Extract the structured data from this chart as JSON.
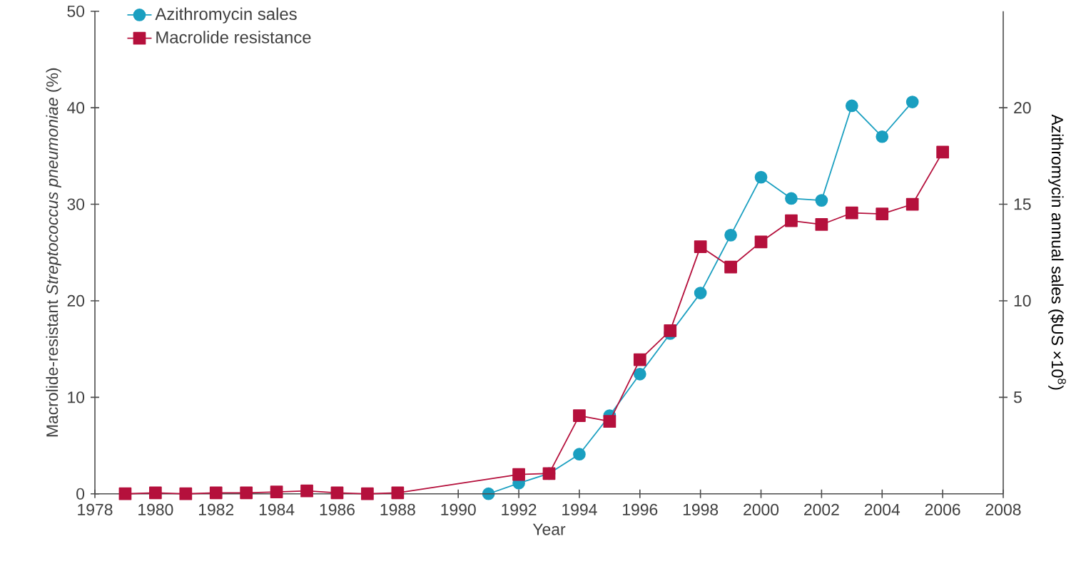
{
  "chart_data": {
    "type": "line",
    "xlabel": "Year",
    "ylabel": "Macrolide-resistant *Streptococcus pneumoniae* (%)",
    "y2label": "Azithromycin annual sales ($US ×10$^{8}$)",
    "series": [
      {
        "name": "Azithromycin sales",
        "color": "#1a9fc0",
        "marker": "circle",
        "axis": "y2",
        "x": [
          1991,
          1992,
          1993,
          1994,
          1995,
          1996,
          1997,
          1998,
          1999,
          2000,
          2001,
          2002,
          2003,
          2004,
          2005
        ],
        "values": [
          0,
          0.55,
          1.05,
          2.05,
          4.05,
          6.2,
          8.3,
          10.4,
          13.4,
          16.4,
          15.3,
          15.2,
          20.1,
          18.5,
          20.3
        ]
      },
      {
        "name": "Macrolide resistance",
        "color": "#b5103c",
        "marker": "square",
        "x": [
          1979,
          1980,
          1981,
          1982,
          1983,
          1984,
          1985,
          1986,
          1987,
          1988,
          1992,
          1993,
          1994,
          1995,
          1996,
          1997,
          1998,
          1999,
          2000,
          2001,
          2002,
          2003,
          2004,
          2005,
          2006
        ],
        "values": [
          0,
          0.1,
          0,
          0.1,
          0.1,
          0.2,
          0.3,
          0.1,
          0,
          0.1,
          2.0,
          2.1,
          8.1,
          7.5,
          13.9,
          16.9,
          25.6,
          23.5,
          26.1,
          28.3,
          27.9,
          29.1,
          29.0,
          30.0,
          35.4
        ]
      }
    ],
    "xlim": [
      1978,
      2008
    ],
    "xticks": [
      1978,
      1980,
      1982,
      1984,
      1986,
      1988,
      1990,
      1992,
      1994,
      1996,
      1998,
      2000,
      2002,
      2004,
      2006,
      2008
    ],
    "ylim": [
      0,
      50
    ],
    "yticks": [
      0,
      10,
      20,
      30,
      40,
      50
    ],
    "y2lim": [
      0,
      25
    ],
    "y2ticks": [
      5,
      10,
      15,
      20
    ],
    "legend": "top left",
    "line_style": "solid"
  }
}
